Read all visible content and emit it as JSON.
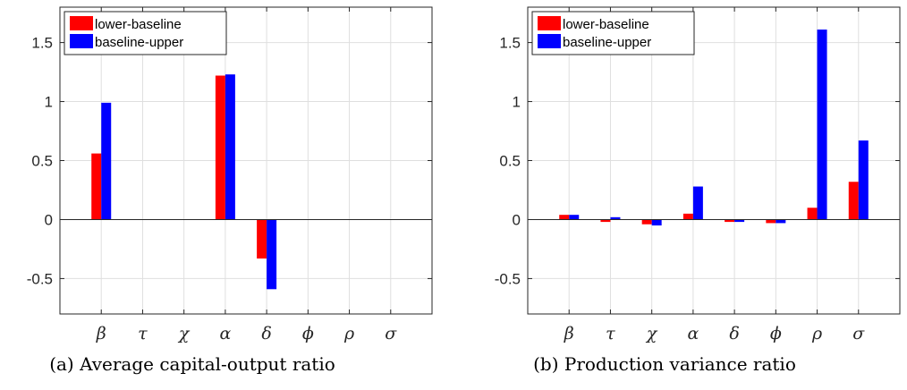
{
  "chart_data": [
    {
      "type": "bar",
      "caption": "(a) Average capital-output ratio",
      "categories": [
        "β",
        "τ",
        "χ",
        "α",
        "δ",
        "ϕ",
        "ρ",
        "σ"
      ],
      "series": [
        {
          "name": "lower-baseline",
          "color": "#ff0000",
          "values": [
            0.56,
            0,
            0,
            1.22,
            -0.33,
            0,
            0,
            0
          ]
        },
        {
          "name": "baseline-upper",
          "color": "#0000ff",
          "values": [
            0.99,
            0,
            0,
            1.23,
            -0.59,
            0,
            0,
            0
          ]
        }
      ],
      "ylim": [
        -0.8,
        1.8
      ],
      "yticks": [
        -0.5,
        0,
        0.5,
        1,
        1.5
      ],
      "ytick_labels": [
        "-0.5",
        "0",
        "0.5",
        "1",
        "1.5"
      ],
      "grid": true,
      "legend_position": "top-left"
    },
    {
      "type": "bar",
      "caption": "(b) Production variance ratio",
      "categories": [
        "β",
        "τ",
        "χ",
        "α",
        "δ",
        "ϕ",
        "ρ",
        "σ"
      ],
      "series": [
        {
          "name": "lower-baseline",
          "color": "#ff0000",
          "values": [
            0.04,
            -0.02,
            -0.04,
            0.05,
            -0.02,
            -0.03,
            0.1,
            0.32
          ]
        },
        {
          "name": "baseline-upper",
          "color": "#0000ff",
          "values": [
            0.04,
            0.02,
            -0.05,
            0.28,
            -0.02,
            -0.03,
            1.61,
            0.67
          ]
        }
      ],
      "ylim": [
        -0.8,
        1.8
      ],
      "yticks": [
        -0.5,
        0,
        0.5,
        1,
        1.5
      ],
      "ytick_labels": [
        "-0.5",
        "0",
        "0.5",
        "1",
        "1.5"
      ],
      "grid": true,
      "legend_position": "top-left"
    }
  ]
}
